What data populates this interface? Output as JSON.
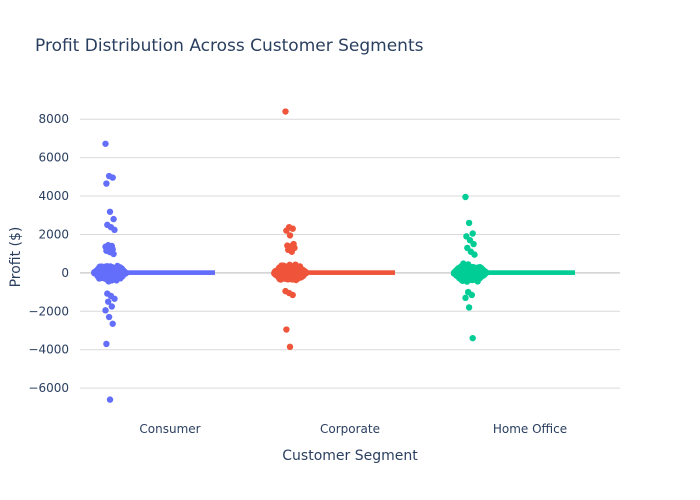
{
  "chart_data": {
    "type": "scatter",
    "subtype": "strip-with-box",
    "title": "Profit Distribution Across Customer Segments",
    "xlabel": "Customer Segment",
    "ylabel": "Profit ($)",
    "ylim": [
      -7400,
      9000
    ],
    "yticks": [
      -6000,
      -4000,
      -2000,
      0,
      2000,
      4000,
      6000,
      8000
    ],
    "ytick_labels": [
      "−6000",
      "−4000",
      "−2000",
      "0",
      "2000",
      "4000",
      "6000",
      "8000"
    ],
    "grid": true,
    "legend": "none",
    "categories": [
      "Consumer",
      "Corporate",
      "Home Office"
    ],
    "series": [
      {
        "category": "Consumer",
        "color": "#636efa",
        "box": {
          "q1": -5,
          "median": 9,
          "q3": 30
        },
        "outliers": [
          6720,
          5040,
          4960,
          4650,
          3180,
          2800,
          2500,
          2380,
          2240,
          1440,
          1400,
          1360,
          1320,
          1220,
          1150,
          1080,
          980,
          -1080,
          -1200,
          -1350,
          -1500,
          -1750,
          -1950,
          -2300,
          -2650,
          -3700,
          -6600
        ]
      },
      {
        "category": "Corporate",
        "color": "#ef553b",
        "box": {
          "q1": -5,
          "median": 9,
          "q3": 30
        },
        "outliers": [
          8400,
          2380,
          2300,
          2200,
          1950,
          1500,
          1420,
          1380,
          1300,
          1200,
          1100,
          -950,
          -1050,
          -1150,
          -2950,
          -3850
        ]
      },
      {
        "category": "Home Office",
        "color": "#00cc96",
        "box": {
          "q1": -5,
          "median": 9,
          "q3": 30
        },
        "outliers": [
          3950,
          2600,
          2050,
          1900,
          1700,
          1500,
          1300,
          1100,
          950,
          -1000,
          -1150,
          -1300,
          -1800,
          -3400
        ]
      }
    ]
  }
}
